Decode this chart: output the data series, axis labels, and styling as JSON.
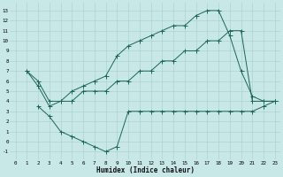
{
  "background_color": "#c8e8e8",
  "grid_color": "#a8cccc",
  "line_color": "#1a6655",
  "xlabel": "Humidex (Indice chaleur)",
  "xlim": [
    -0.5,
    23.5
  ],
  "ylim": [
    -1.8,
    13.8
  ],
  "xticks": [
    0,
    1,
    2,
    3,
    4,
    5,
    6,
    7,
    8,
    9,
    10,
    11,
    12,
    13,
    14,
    15,
    16,
    17,
    18,
    19,
    20,
    21,
    22,
    23
  ],
  "yticks": [
    -1,
    0,
    1,
    2,
    3,
    4,
    5,
    6,
    7,
    8,
    9,
    10,
    11,
    12,
    13
  ],
  "line1_x": [
    1,
    2,
    3,
    4,
    5,
    6,
    7,
    8,
    9,
    10,
    11,
    12,
    13,
    14,
    15,
    16,
    17,
    18,
    19,
    20,
    21,
    22,
    23
  ],
  "line1_y": [
    7,
    6,
    4,
    4,
    4,
    5,
    5,
    5,
    6,
    6,
    7,
    7,
    8,
    8,
    9,
    9,
    10,
    10,
    11,
    11,
    4,
    4,
    4
  ],
  "line2_x": [
    1,
    2,
    3,
    4,
    5,
    6,
    7,
    8,
    9,
    10,
    11,
    12,
    13,
    14,
    15,
    16,
    17,
    18,
    19,
    20,
    21,
    22,
    23
  ],
  "line2_y": [
    7,
    5.5,
    3.5,
    4,
    5,
    5.5,
    6,
    6.5,
    8.5,
    9.5,
    10,
    10.5,
    11,
    11.5,
    11.5,
    12.5,
    13,
    13,
    10.5,
    7,
    4.5,
    4,
    4
  ],
  "line3_x": [
    2,
    3,
    4,
    5,
    6,
    7,
    8,
    9,
    10,
    11,
    12,
    13,
    14,
    15,
    16,
    17,
    18,
    19,
    20,
    21,
    22,
    23
  ],
  "line3_y": [
    3.5,
    2.5,
    1,
    0.5,
    0,
    -0.5,
    -1,
    -0.5,
    3,
    3,
    3,
    3,
    3,
    3,
    3,
    3,
    3,
    3,
    3,
    3,
    3.5,
    4
  ]
}
